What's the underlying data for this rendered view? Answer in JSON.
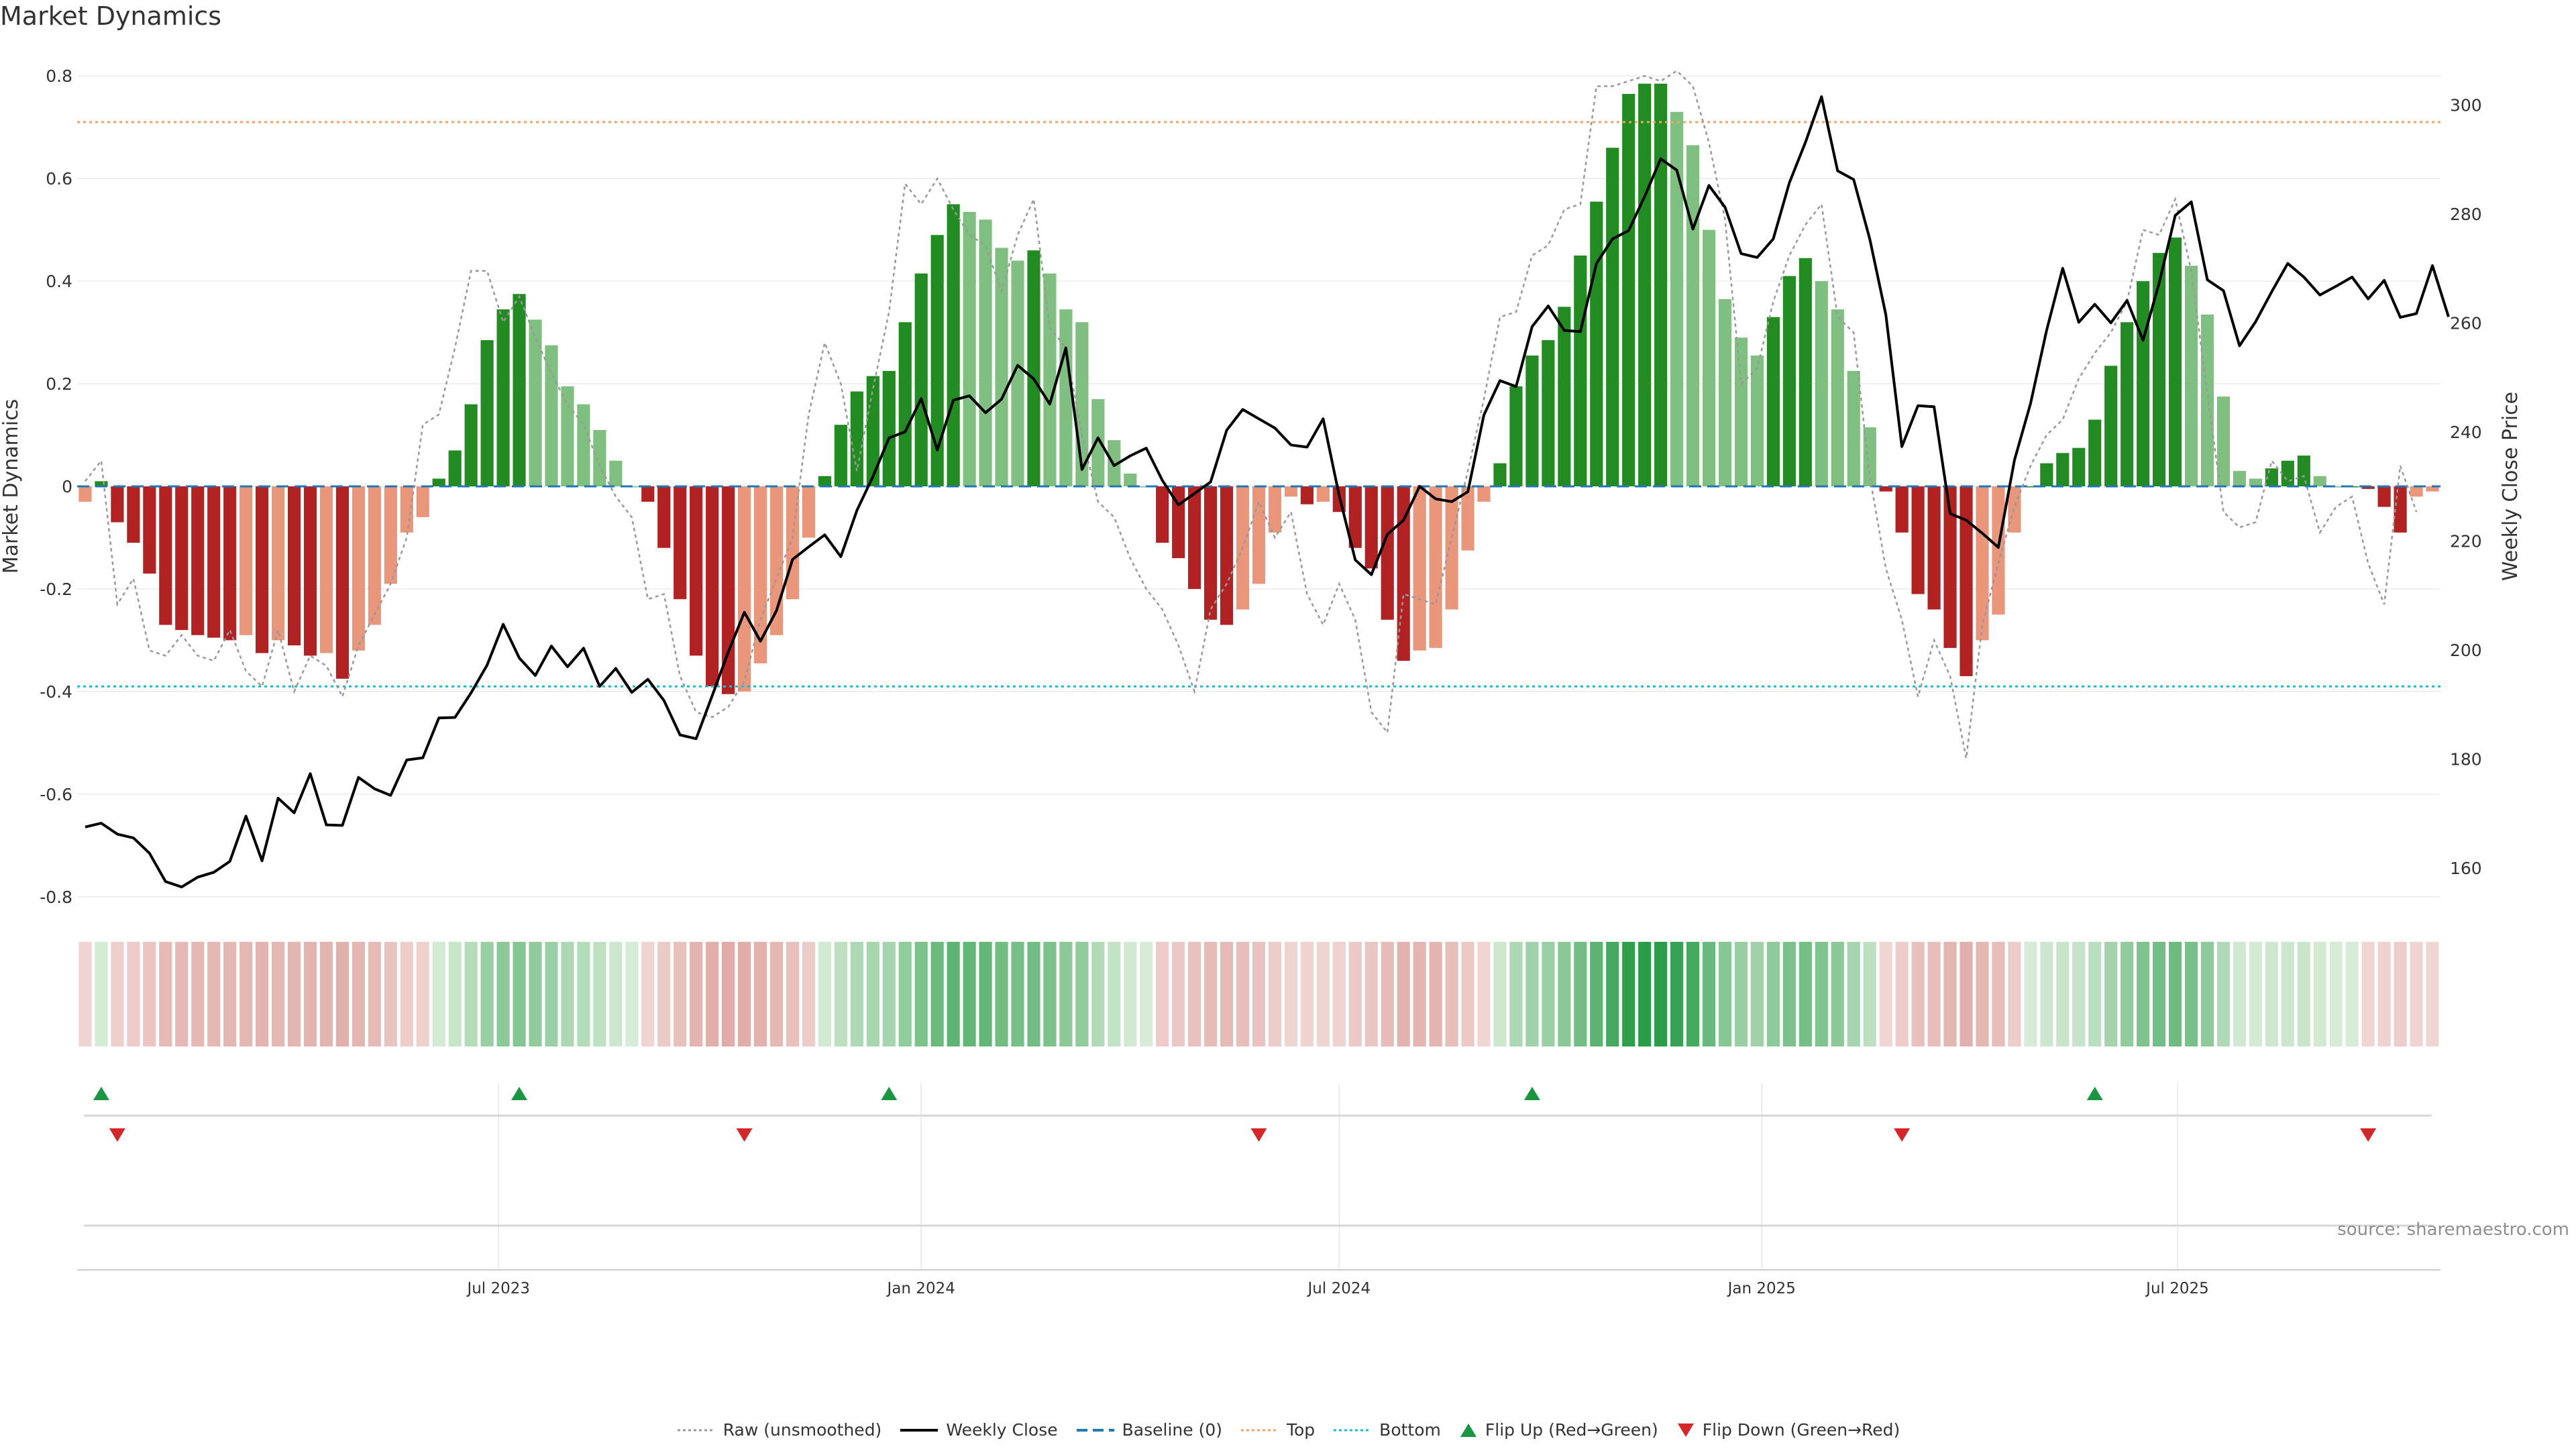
{
  "page": {
    "title": "Market Dynamics",
    "source": "source: sharemaestro.com"
  },
  "colors": {
    "strong_green": "#228b22",
    "light_green": "#7fbf7f",
    "strong_red": "#b22222",
    "light_red": "#e9967a",
    "raw_line": "#999999",
    "close_line": "#000000",
    "baseline": "#1f77b4",
    "top": "#f4a261",
    "bottom": "#17becf",
    "flip_up": "#1a9641",
    "flip_down": "#d62728"
  },
  "legend": [
    {
      "label": "Raw (unsmoothed)",
      "icon": "dotted-gray-line-icon"
    },
    {
      "label": "Weekly Close",
      "icon": "solid-black-line-icon"
    },
    {
      "label": "Baseline (0)",
      "icon": "dashed-blue-line-icon"
    },
    {
      "label": "Top",
      "icon": "dotted-orange-line-icon"
    },
    {
      "label": "Bottom",
      "icon": "dotted-cyan-line-icon"
    },
    {
      "label": "Flip Up (Red→Green)",
      "icon": "green-up-triangle-icon"
    },
    {
      "label": "Flip Down (Green→Red)",
      "icon": "red-down-triangle-icon"
    }
  ],
  "chart_data": {
    "type": "bar",
    "title": "Market Dynamics",
    "ylabel": "Market Dynamics",
    "y2label": "Weekly Close Price",
    "ylim": [
      -0.85,
      0.85
    ],
    "y2lim": [
      150,
      310
    ],
    "yticks": [
      -0.8,
      -0.6,
      -0.4,
      -0.2,
      0,
      0.2,
      0.4,
      0.6,
      0.8
    ],
    "y2ticks": [
      160,
      180,
      200,
      220,
      240,
      260,
      280,
      300
    ],
    "x_start": "2023-01-02",
    "x_end": "2025-10-20",
    "x_step_days": 7,
    "xticks": [
      {
        "label": "Jul 2023",
        "date": "2023-07-01"
      },
      {
        "label": "Jan 2024",
        "date": "2024-01-01"
      },
      {
        "label": "Jul 2024",
        "date": "2024-07-01"
      },
      {
        "label": "Jan 2025",
        "date": "2025-01-01"
      },
      {
        "label": "Jul 2025",
        "date": "2025-07-01"
      }
    ],
    "top_level": 0.71,
    "bottom_level": -0.39,
    "baseline": 0,
    "grid": true,
    "legend_position": "bottom-center",
    "series": [
      {
        "name": "Market Dynamics",
        "values": [
          -0.03,
          0.01,
          -0.07,
          -0.11,
          -0.17,
          -0.27,
          -0.28,
          -0.29,
          -0.295,
          -0.3,
          -0.29,
          -0.325,
          -0.3,
          -0.31,
          -0.33,
          -0.325,
          -0.375,
          -0.32,
          -0.27,
          -0.19,
          -0.09,
          -0.06,
          0.015,
          0.07,
          0.16,
          0.285,
          0.345,
          0.375,
          0.325,
          0.275,
          0.195,
          0.16,
          0.11,
          0.05,
          0,
          -0.03,
          -0.12,
          -0.22,
          -0.33,
          -0.39,
          -0.405,
          -0.4,
          -0.345,
          -0.29,
          -0.22,
          -0.1,
          0.02,
          0.12,
          0.185,
          0.215,
          0.225,
          0.32,
          0.415,
          0.49,
          0.55,
          0.535,
          0.52,
          0.465,
          0.44,
          0.46,
          0.415,
          0.345,
          0.32,
          0.17,
          0.09,
          0.025,
          0,
          -0.11,
          -0.14,
          -0.2,
          -0.26,
          -0.27,
          -0.24,
          -0.19,
          -0.09,
          -0.02,
          -0.035,
          -0.03,
          -0.05,
          -0.12,
          -0.16,
          -0.26,
          -0.34,
          -0.32,
          -0.315,
          -0.24,
          -0.125,
          -0.03,
          0.045,
          0.195,
          0.255,
          0.285,
          0.35,
          0.45,
          0.555,
          0.66,
          0.765,
          0.785,
          0.785,
          0.73,
          0.665,
          0.5,
          0.365,
          0.29,
          0.255,
          0.33,
          0.41,
          0.445,
          0.4,
          0.345,
          0.225,
          0.115,
          -0.01,
          -0.09,
          -0.21,
          -0.24,
          -0.315,
          -0.37,
          -0.3,
          -0.25,
          -0.09,
          0,
          0.045,
          0.065,
          0.075,
          0.13,
          0.235,
          0.32,
          0.4,
          0.455,
          0.485,
          0.43,
          0.335,
          0.175,
          0.03,
          0.015,
          0.035,
          0.05,
          0.06,
          0.02,
          0,
          0,
          -0.005,
          -0.04,
          -0.09,
          -0.02,
          -0.01
        ]
      },
      {
        "name": "Raw (unsmoothed)",
        "values": [
          0.01,
          0.05,
          -0.23,
          -0.18,
          -0.32,
          -0.33,
          -0.29,
          -0.33,
          -0.34,
          -0.28,
          -0.36,
          -0.39,
          -0.28,
          -0.4,
          -0.33,
          -0.35,
          -0.41,
          -0.31,
          -0.25,
          -0.19,
          -0.1,
          0.12,
          0.14,
          0.27,
          0.42,
          0.42,
          0.32,
          0.37,
          0.29,
          0.22,
          0.16,
          0.12,
          0.04,
          -0.02,
          -0.06,
          -0.22,
          -0.21,
          -0.37,
          -0.44,
          -0.45,
          -0.43,
          -0.38,
          -0.26,
          -0.18,
          -0.1,
          0.14,
          0.28,
          0.2,
          0.03,
          0.19,
          0.34,
          0.59,
          0.55,
          0.6,
          0.54,
          0.49,
          0.47,
          0.38,
          0.49,
          0.56,
          0.31,
          0.27,
          0.1,
          -0.03,
          -0.06,
          -0.14,
          -0.2,
          -0.24,
          -0.31,
          -0.4,
          -0.24,
          -0.19,
          -0.12,
          -0.03,
          -0.1,
          -0.05,
          -0.21,
          -0.27,
          -0.19,
          -0.26,
          -0.44,
          -0.48,
          -0.21,
          -0.22,
          -0.23,
          -0.1,
          0.03,
          0.17,
          0.33,
          0.34,
          0.45,
          0.47,
          0.54,
          0.55,
          0.78,
          0.78,
          0.79,
          0.8,
          0.79,
          0.81,
          0.78,
          0.67,
          0.52,
          0.2,
          0.23,
          0.36,
          0.45,
          0.51,
          0.55,
          0.33,
          0.3,
          0.02,
          -0.16,
          -0.26,
          -0.41,
          -0.3,
          -0.37,
          -0.53,
          -0.27,
          -0.15,
          -0.04,
          0.04,
          0.1,
          0.13,
          0.21,
          0.26,
          0.3,
          0.36,
          0.5,
          0.49,
          0.56,
          0.42,
          0.18,
          -0.05,
          -0.08,
          -0.07,
          0.05,
          0.01,
          0.02,
          -0.09,
          -0.04,
          -0.02,
          -0.15,
          -0.23,
          0.04,
          -0.05
        ]
      },
      {
        "name": "Weekly Close",
        "values": [
          167.5,
          168.2,
          166.2,
          165.5,
          162.7,
          157.5,
          156.5,
          158.3,
          159.2,
          161.2,
          169.5,
          161.3,
          172.8,
          170.1,
          177.3,
          167.9,
          167.8,
          176.6,
          174.5,
          173.3,
          179.8,
          180.2,
          187.5,
          187.6,
          192.1,
          197.2,
          204.7,
          198.5,
          195.3,
          200.7,
          196.9,
          200.3,
          193.3,
          196.6,
          192.2,
          194.6,
          190.7,
          184.4,
          183.7,
          191.6,
          199.6,
          206.9,
          201.6,
          207.2,
          216.6,
          218.9,
          221.1,
          217.1,
          225.6,
          231.8,
          238.9,
          240,
          246.1,
          236.7,
          245.8,
          246.6,
          243.5,
          246,
          252.2,
          249.7,
          245.1,
          255.4,
          233.1,
          238.9,
          233.8,
          235.6,
          237,
          231.1,
          226.6,
          228.7,
          230.8,
          240.3,
          244.1,
          242.4,
          240.7,
          237.6,
          237.2,
          242.4,
          228.3,
          216.5,
          213.8,
          221.2,
          223.8,
          230,
          227.7,
          227.2,
          229,
          243.1,
          249.4,
          248.3,
          259.3,
          263.1,
          258.6,
          258.4,
          270.9,
          275.4,
          276.9,
          283.2,
          290.1,
          288,
          277.2,
          285.2,
          281.2,
          272.7,
          272,
          275.4,
          285.7,
          293.1,
          301.5,
          287.9,
          286.3,
          275.4,
          261.5,
          237.3,
          244.8,
          244.6,
          225,
          223.8,
          221.4,
          218.8,
          234.8,
          245.2,
          258.6,
          270,
          260.1,
          263.4,
          260,
          264.1,
          256.8,
          267.3,
          279.7,
          282.2,
          267.9,
          265.9,
          255.8,
          260.2,
          265.7,
          270.9,
          268.4,
          265.1,
          266.7,
          268.4,
          264.4,
          267.8,
          261,
          261.7,
          270.5,
          261.1
        ]
      }
    ],
    "heatmap_ribbon": {
      "values_from": "Market Dynamics",
      "colormap": "red-green diverging"
    },
    "flip_up_dates": [
      "2023-01-09",
      "2023-07-10",
      "2023-12-18",
      "2024-09-23",
      "2025-05-26"
    ],
    "flip_down_dates": [
      "2023-01-16",
      "2023-10-16",
      "2024-05-27",
      "2025-03-03",
      "2025-09-22"
    ]
  }
}
